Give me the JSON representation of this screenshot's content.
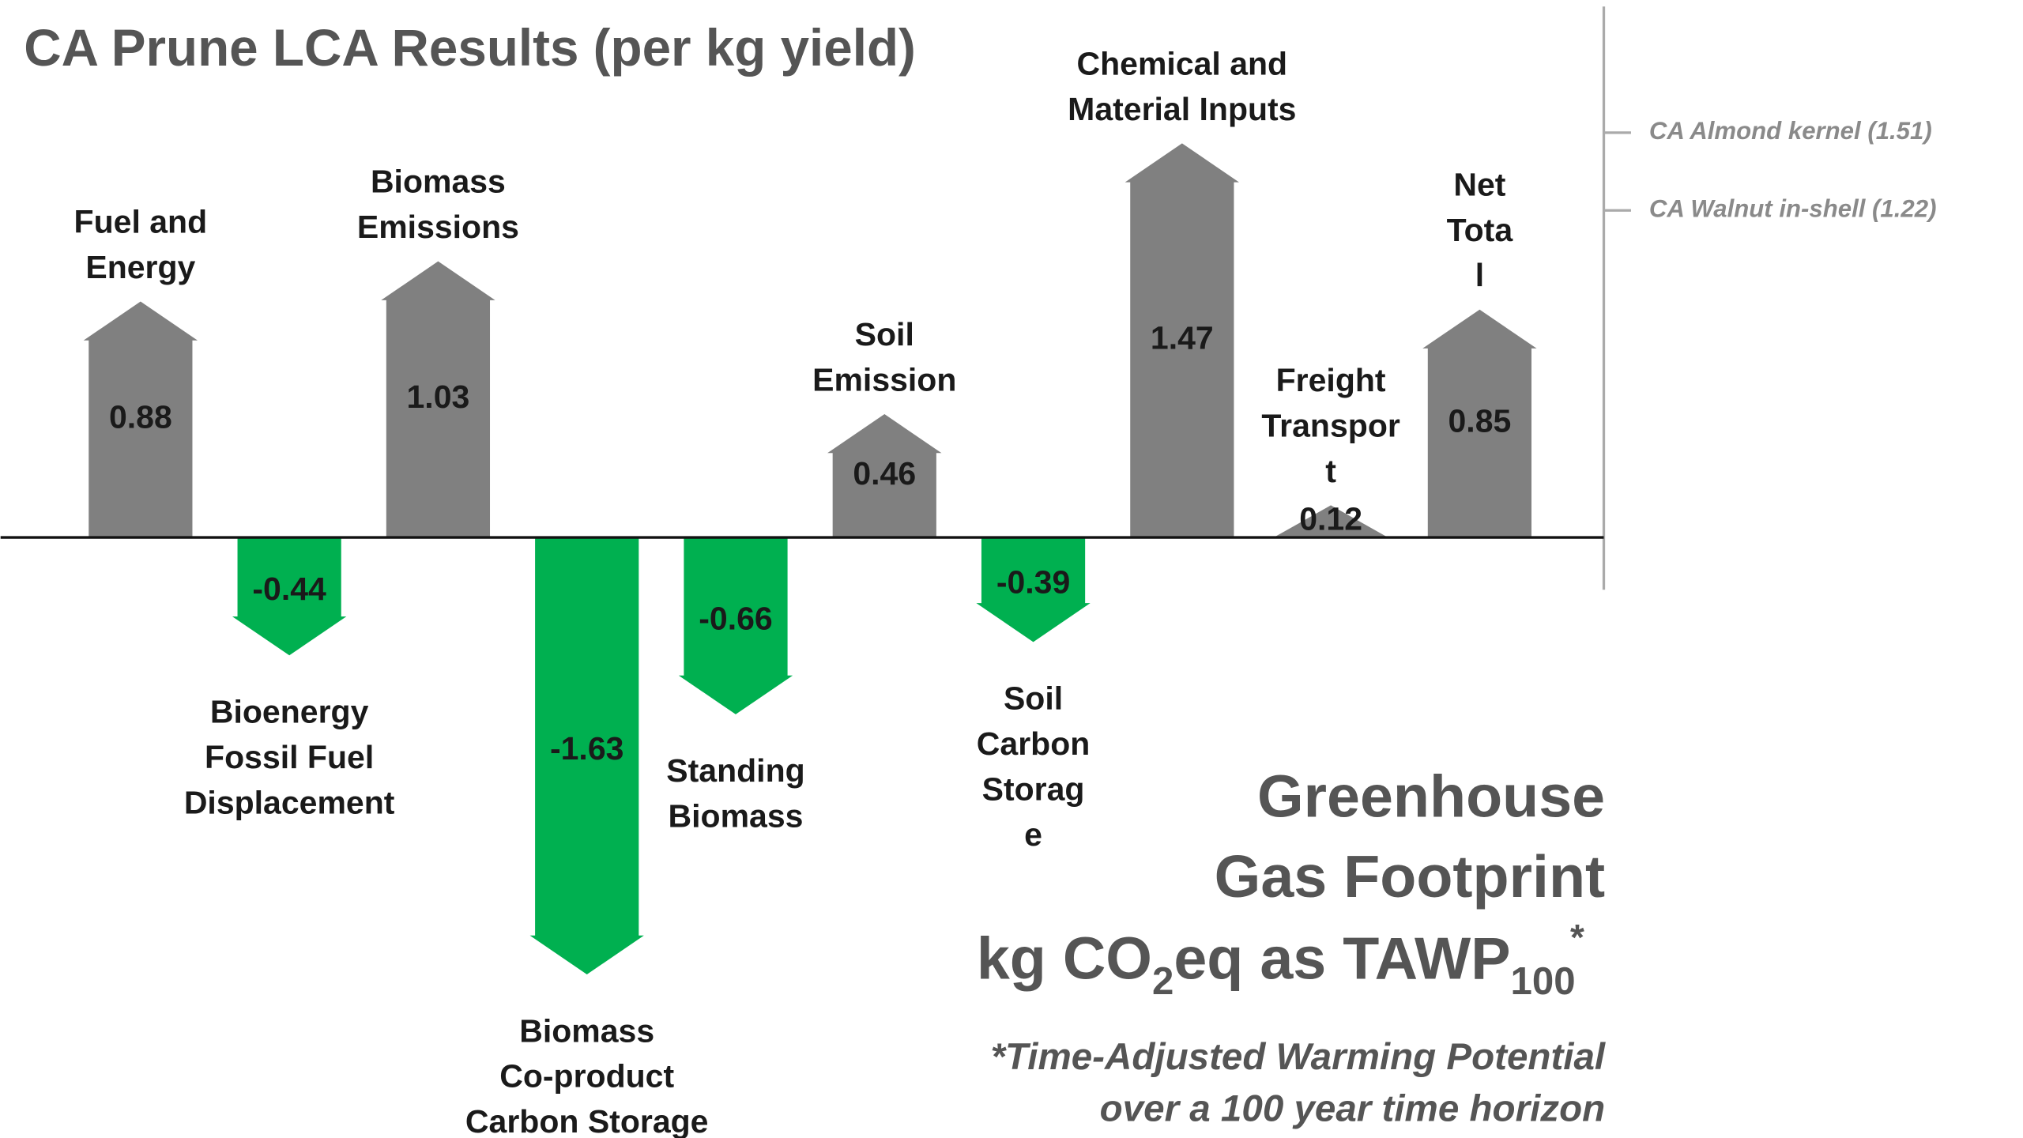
{
  "chart_data": {
    "type": "arrow-bar",
    "title": "CA Prune LCA Results (per kg yield)",
    "categories": [
      "Fuel and\nEnergy",
      "Bioenergy\nFossil Fuel\nDisplacement",
      "Biomass\nEmissions",
      "Biomass\nCo-product\nCarbon Storage",
      "Standing\nBiomass",
      "Soil\nEmission",
      "Soil\nCarbon\nStorag\ne",
      "Chemical and\nMaterial Inputs",
      "Freight\nTranspor\nt",
      "Net\nTota\nl"
    ],
    "values": [
      0.88,
      -0.44,
      1.03,
      -1.63,
      -0.66,
      0.46,
      -0.39,
      1.47,
      0.12,
      0.85
    ],
    "positive_color": "#808080",
    "negative_color": "#00b050",
    "ylim": [
      -2.25,
      2.0
    ],
    "reference_lines": [
      {
        "label": "CA Almond kernel (1.51)",
        "value": 1.51
      },
      {
        "label": "CA Walnut in-shell (1.22)",
        "value": 1.22
      }
    ],
    "annotation": {
      "lines": [
        "Greenhouse",
        "Gas Footprint"
      ],
      "unit_parts": [
        "kg CO",
        "2",
        "eq as TAWP",
        "100",
        "*"
      ],
      "footnote": [
        "*Time-Adjusted Warming Potential",
        "over a 100 year time horizon"
      ]
    }
  }
}
